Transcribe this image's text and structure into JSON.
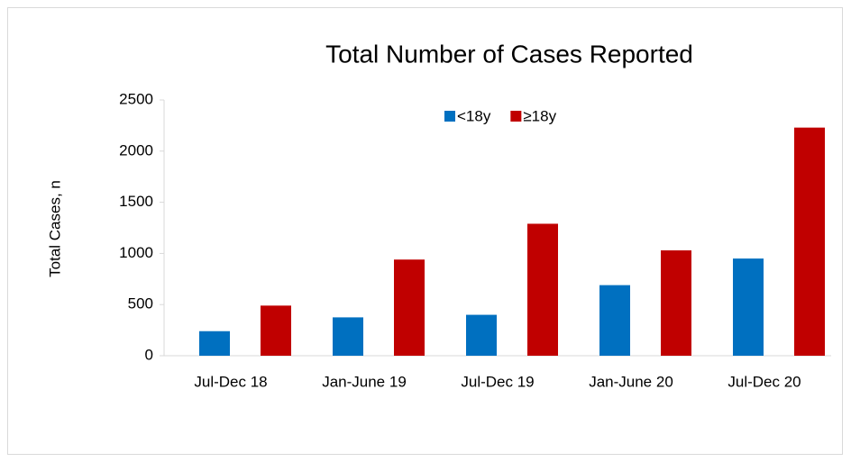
{
  "chart_data": {
    "type": "bar",
    "title": "Total Number of Cases Reported",
    "y_label": "Total Cases, n",
    "categories": [
      "Jul-Dec 18",
      "Jan-June 19",
      "Jul-Dec 19",
      "Jan-June 20",
      "Jul-Dec 20"
    ],
    "series": [
      {
        "name": "<18y",
        "color": "#0070c0",
        "values": [
          240,
          375,
          400,
          690,
          950
        ]
      },
      {
        "name": "≥18y",
        "color": "#c00000",
        "values": [
          490,
          940,
          1290,
          1030,
          2230
        ]
      }
    ],
    "ylim": [
      0,
      2500
    ],
    "yticks": [
      0,
      500,
      1000,
      1500,
      2000,
      2500
    ],
    "grid": false,
    "legend": "top"
  }
}
